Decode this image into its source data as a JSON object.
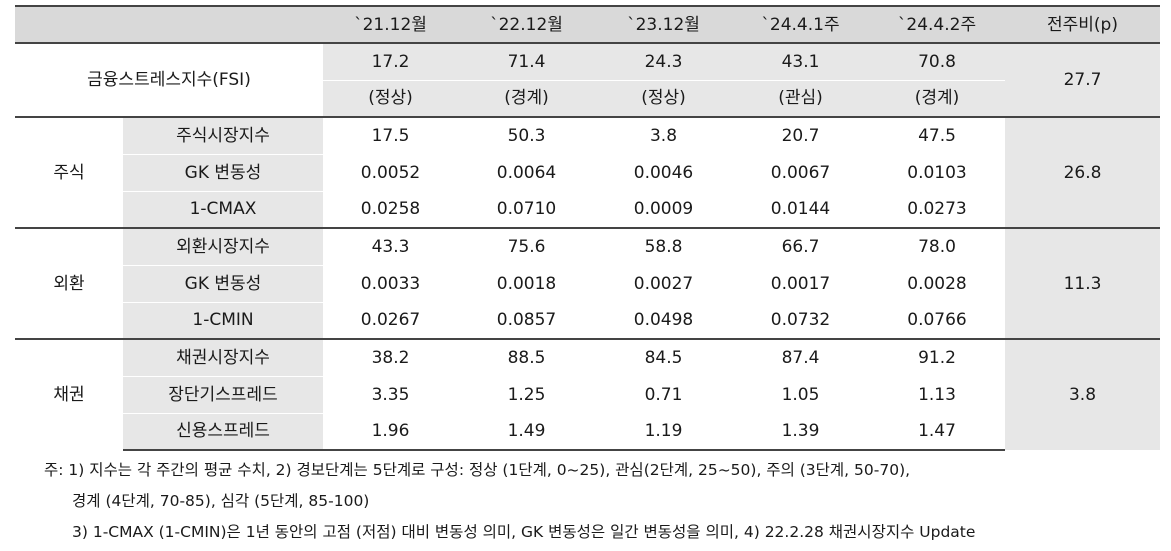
{
  "headers": [
    "",
    "`21.12월",
    "`22.12월",
    "`23.12월",
    "`24.4.1주",
    "`24.4.2주",
    "전주비(p)"
  ],
  "fsi": {
    "label": "금융스트레스지수(FSI)",
    "values": [
      "17.2",
      "71.4",
      "24.3",
      "43.1",
      "70.8"
    ],
    "stages": [
      "(정상)",
      "(경계)",
      "(정상)",
      "(관심)",
      "(경계)"
    ],
    "change": "27.7"
  },
  "groups": [
    {
      "name": "주식",
      "change": "26.8",
      "rows": [
        {
          "label": "주식시장지수",
          "values": [
            "17.5",
            "50.3",
            "3.8",
            "20.7",
            "47.5"
          ]
        },
        {
          "label": "GK 변동성",
          "values": [
            "0.0052",
            "0.0064",
            "0.0046",
            "0.0067",
            "0.0103"
          ]
        },
        {
          "label": "1-CMAX",
          "values": [
            "0.0258",
            "0.0710",
            "0.0009",
            "0.0144",
            "0.0273"
          ]
        }
      ]
    },
    {
      "name": "외환",
      "change": "11.3",
      "rows": [
        {
          "label": "외환시장지수",
          "values": [
            "43.3",
            "75.6",
            "58.8",
            "66.7",
            "78.0"
          ]
        },
        {
          "label": "GK 변동성",
          "values": [
            "0.0033",
            "0.0018",
            "0.0027",
            "0.0017",
            "0.0028"
          ]
        },
        {
          "label": "1-CMIN",
          "values": [
            "0.0267",
            "0.0857",
            "0.0498",
            "0.0732",
            "0.0766"
          ]
        }
      ]
    },
    {
      "name": "채권",
      "change": "3.8",
      "rows": [
        {
          "label": "채권시장지수",
          "values": [
            "38.2",
            "88.5",
            "84.5",
            "87.4",
            "91.2"
          ]
        },
        {
          "label": "장단기스프레드",
          "values": [
            "3.35",
            "1.25",
            "0.71",
            "1.05",
            "1.13"
          ]
        },
        {
          "label": "신용스프레드",
          "values": [
            "1.96",
            "1.49",
            "1.19",
            "1.39",
            "1.47"
          ]
        }
      ]
    }
  ],
  "notes": [
    "주: 1) 지수는 각 주간의 평균 수치, 2) 경보단계는 5단계로 구성: 정상 (1단계, 0~25), 관심(2단계, 25~50), 주의 (3단계, 50-70),",
    "경계 (4단계, 70-85), 심각 (5단계, 85-100)",
    "3) 1-CMAX (1-CMIN)은 1년 동안의 고점 (저점) 대비 변동성 의미, GK 변동성은 일간 변동성을 의미, 4) 22.2.28 채권시장지수 Update"
  ]
}
